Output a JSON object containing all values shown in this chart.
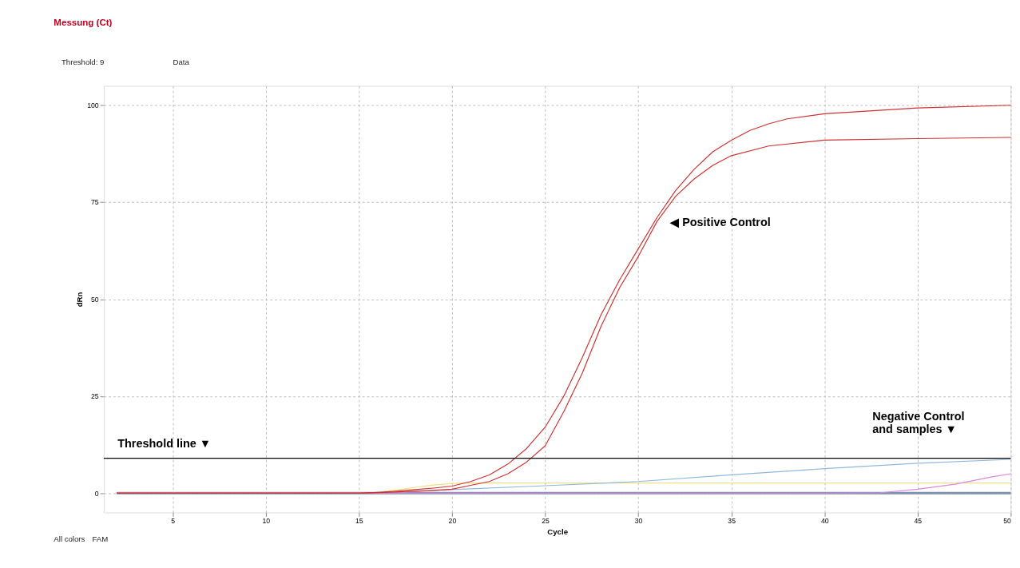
{
  "chart_data": {
    "type": "line",
    "title": "Messung (Ct)",
    "xlabel": "Cycle",
    "ylabel": "dRn",
    "xlim": [
      1.3,
      50
    ],
    "ylim": [
      -5,
      105
    ],
    "xticks": [
      5,
      10,
      15,
      20,
      25,
      30,
      35,
      40,
      45,
      50
    ],
    "yticks": [
      0,
      25,
      50,
      75,
      100
    ],
    "grid": true,
    "marker": "none",
    "line_style": "solid",
    "series": [
      {
        "color": "#8090b0",
        "x": [
          2,
          10,
          20,
          30,
          40,
          50
        ],
        "values": [
          0,
          0,
          0,
          0,
          0,
          0
        ]
      },
      {
        "color": "#f0e08c",
        "x": [
          2,
          15,
          16,
          17,
          18,
          19,
          20,
          21,
          25,
          30,
          40,
          50
        ],
        "values": [
          0,
          0,
          0.2,
          0.8,
          1.5,
          2.1,
          2.5,
          2.6,
          2.6,
          2.6,
          2.6,
          2.6
        ]
      },
      {
        "color": "#8fb8de",
        "x": [
          2,
          15,
          17,
          20,
          25,
          30,
          35,
          40,
          45,
          50
        ],
        "values": [
          0,
          0,
          0.2,
          0.9,
          1.9,
          3,
          4.7,
          6.3,
          7.7,
          8.7
        ]
      },
      {
        "color": "#dd88dd",
        "x": [
          2,
          40,
          43,
          45,
          47,
          49,
          50
        ],
        "values": [
          0,
          0,
          0.1,
          1,
          2.3,
          4.2,
          5
        ]
      },
      {
        "color": "#d03030",
        "x": [
          2,
          15,
          16,
          17,
          18,
          19,
          20,
          21,
          22,
          23,
          24,
          25,
          26,
          27,
          28,
          29,
          30,
          31,
          32,
          33,
          34,
          35,
          36,
          37,
          38,
          40,
          45,
          50
        ],
        "values": [
          0,
          0,
          0.2,
          0.5,
          0.9,
          1.3,
          1.8,
          3,
          4.7,
          7.5,
          11.5,
          17,
          25,
          35,
          46,
          55,
          63,
          71,
          78,
          83.5,
          88,
          91,
          93.5,
          95.2,
          96.5,
          97.8,
          99.3,
          100
        ]
      },
      {
        "color": "#d03030",
        "x": [
          2,
          15,
          16,
          17,
          18,
          19,
          20,
          21,
          22,
          23,
          24,
          25,
          26,
          27,
          28,
          29,
          30,
          31,
          32,
          33,
          34,
          35,
          37,
          40,
          45,
          50
        ],
        "values": [
          0,
          0,
          0.1,
          0.3,
          0.5,
          0.7,
          1,
          2,
          3,
          5,
          8,
          12.2,
          21,
          31,
          43,
          53,
          61,
          70,
          76.5,
          81,
          84.5,
          87,
          89.5,
          91,
          91.4,
          91.7
        ]
      }
    ],
    "ref_lines": [
      {
        "axis": "y",
        "value": 9,
        "color": "#000000",
        "line_style": "solid"
      }
    ],
    "annotations": [
      "Threshold line ▼",
      "◀ Positive Control",
      "Negative Control\nand samples ▼",
      "Threshold: 9",
      "Data",
      "All colors",
      "FAM"
    ]
  }
}
